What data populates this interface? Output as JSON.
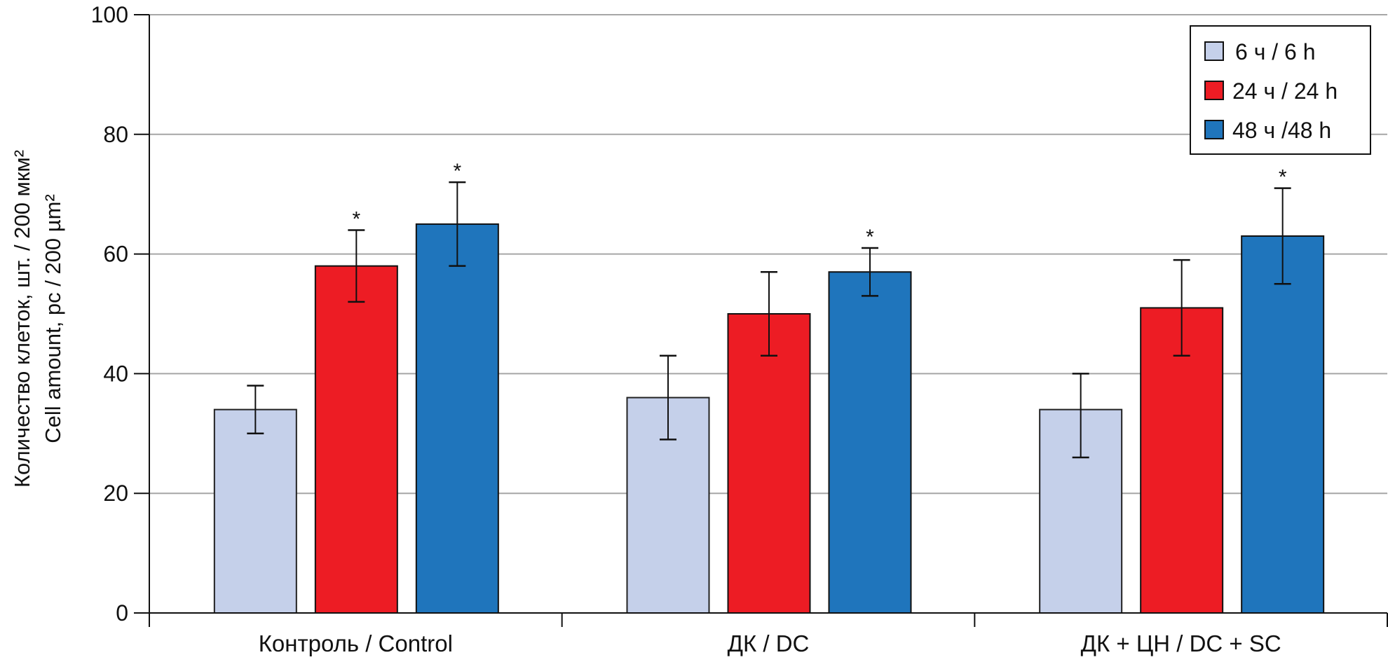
{
  "chart_data": {
    "type": "bar",
    "title": "",
    "xlabel": "",
    "ylabel": [
      "Количество клеток, шт. / 200 мкм²",
      "Cell amount, pc / 200 µm²"
    ],
    "ylim": [
      0,
      100
    ],
    "yticks": [
      0,
      20,
      40,
      60,
      80,
      100
    ],
    "grid": true,
    "legend_position": "top-right",
    "categories": [
      "Контроль / Control",
      "ДК / DC",
      "ДК + ЦН / DC + SC"
    ],
    "series": [
      {
        "name": "6 ч / 6 h",
        "color": "#c5d0ea",
        "values": [
          34,
          36,
          34
        ],
        "err_low": [
          30,
          29,
          26
        ],
        "err_high": [
          38,
          43,
          40
        ],
        "significant": [
          false,
          false,
          false
        ]
      },
      {
        "name": "24 ч / 24 h",
        "color": "#ed1c24",
        "values": [
          58,
          50,
          51
        ],
        "err_low": [
          52,
          43,
          43
        ],
        "err_high": [
          64,
          57,
          59
        ],
        "significant": [
          true,
          false,
          false
        ]
      },
      {
        "name": "48 ч /48 h",
        "color": "#1f75bc",
        "values": [
          65,
          57,
          63
        ],
        "err_low": [
          58,
          53,
          55
        ],
        "err_high": [
          72,
          61,
          71
        ],
        "significant": [
          true,
          true,
          true
        ]
      }
    ],
    "significance_marker": "*"
  }
}
